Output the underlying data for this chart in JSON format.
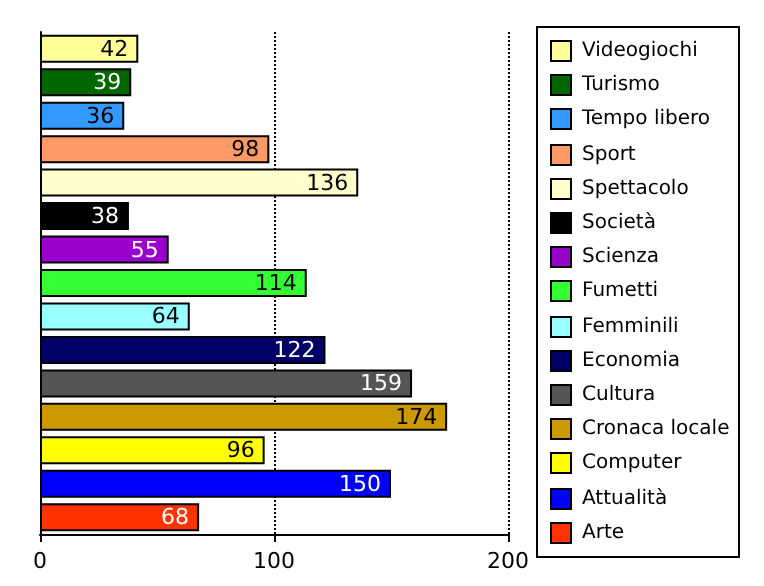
{
  "chart_data": {
    "type": "bar",
    "orientation": "horizontal",
    "categories": [
      "Videogiochi",
      "Turismo",
      "Tempo libero",
      "Sport",
      "Spettacolo",
      "Società",
      "Scienza",
      "Fumetti",
      "Femminili",
      "Economia",
      "Cultura",
      "Cronaca locale",
      "Computer",
      "Attualità",
      "Arte"
    ],
    "values": [
      42,
      39,
      36,
      98,
      136,
      38,
      55,
      114,
      64,
      122,
      159,
      174,
      96,
      150,
      68
    ],
    "colors": [
      "#ffff99",
      "#006600",
      "#3399ff",
      "#ff9966",
      "#ffffcc",
      "#000000",
      "#9900cc",
      "#33ff33",
      "#99ffff",
      "#000066",
      "#555555",
      "#cc9900",
      "#ffff00",
      "#0000ff",
      "#ff3300"
    ],
    "xlim": [
      0,
      200
    ],
    "xticks": [
      0,
      100,
      200
    ],
    "grid": "x",
    "tick_labels": "x",
    "data_labels": true
  }
}
